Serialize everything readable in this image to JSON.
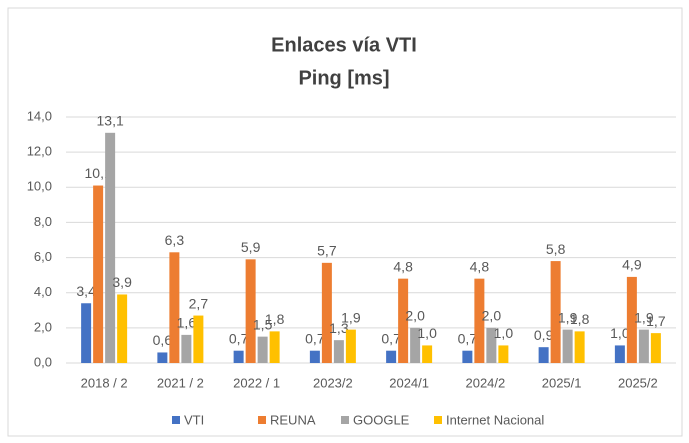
{
  "chart_data": {
    "type": "bar",
    "title": "Enlaces vía VTI",
    "subtitle": "Ping [ms]",
    "categories": [
      "2018 / 2",
      "2021 / 2",
      "2022 / 1",
      "2023/2",
      "2024/1",
      "2024/2",
      "2025/1",
      "2025/2"
    ],
    "series": [
      {
        "name": "VTI",
        "color": "#4472c4",
        "values": [
          3.4,
          0.6,
          0.7,
          0.7,
          0.7,
          0.7,
          0.9,
          1.0
        ],
        "value_labels": [
          "3,4",
          "0,6",
          "0,7",
          "0,7",
          "0,7",
          "0,7",
          "0,9",
          "1,0"
        ]
      },
      {
        "name": "REUNA",
        "color": "#ed7d31",
        "values": [
          10.1,
          6.3,
          5.9,
          5.7,
          4.8,
          4.8,
          5.8,
          4.9
        ],
        "value_labels": [
          "10,1",
          "6,3",
          "5,9",
          "5,7",
          "4,8",
          "4,8",
          "5,8",
          "4,9"
        ]
      },
      {
        "name": "GOOGLE",
        "color": "#a5a5a5",
        "values": [
          13.1,
          1.6,
          1.5,
          1.3,
          2.0,
          2.0,
          1.9,
          1.9
        ],
        "value_labels": [
          "13,1",
          "1,6",
          "1,5",
          "1,3",
          "2,0",
          "2,0",
          "1,9",
          "1,9"
        ]
      },
      {
        "name": "Internet Nacional",
        "color": "#ffc000",
        "values": [
          3.9,
          2.7,
          1.8,
          1.9,
          1.0,
          1.0,
          1.8,
          1.7
        ],
        "value_labels": [
          "3,9",
          "2,7",
          "1,8",
          "1,9",
          "1,0",
          "1,0",
          "1,8",
          "1,7"
        ]
      }
    ],
    "ylim": [
      0,
      14
    ],
    "yticks": [
      {
        "value": 0,
        "label": "0,0"
      },
      {
        "value": 2,
        "label": "2,0"
      },
      {
        "value": 4,
        "label": "4,0"
      },
      {
        "value": 6,
        "label": "6,0"
      },
      {
        "value": 8,
        "label": "8,0"
      },
      {
        "value": 10,
        "label": "10,0"
      },
      {
        "value": 12,
        "label": "12,0"
      },
      {
        "value": 14,
        "label": "14,0"
      }
    ],
    "grid": true,
    "legend": "bottom"
  }
}
